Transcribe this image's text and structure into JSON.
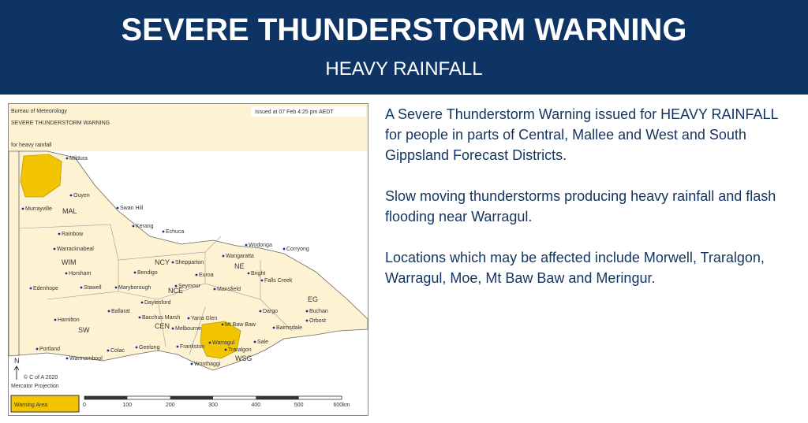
{
  "header": {
    "title": "SEVERE THUNDERSTORM WARNING",
    "subtitle": "HEAVY RAINFALL"
  },
  "map": {
    "agency": "Bureau of Meteorology",
    "heading": "SEVERE THUNDERSTORM WARNING",
    "subheading": "for heavy rainfall",
    "issued": "Issued at 07 Feb 4:25 pm AEDT",
    "places": [
      "Mildura",
      "Ouyen",
      "Murrayville",
      "Swan Hill",
      "Kerang",
      "Rainbow",
      "Warracknabeal",
      "Horsham",
      "Stawell",
      "Edenhope",
      "Echuca",
      "Shepparton",
      "Bendigo",
      "Euroa",
      "Seymour",
      "Maryborough",
      "Daylesford",
      "Ballarat",
      "Bacchus Marsh",
      "Yarra Glen",
      "Melbourne",
      "Mt Baw Baw",
      "Hamilton",
      "Portland",
      "Colac",
      "Geelong",
      "Warrnambool",
      "Frankston",
      "Warragul",
      "Traralgon",
      "Sale",
      "Wonthaggi",
      "Wodonga",
      "Corryong",
      "Wangaratta",
      "Falls Creek",
      "Bright",
      "Mansfield",
      "Dargo",
      "Buchan",
      "Orbost",
      "Bairnsdale"
    ],
    "districts": [
      "MAL",
      "WIM",
      "NCY",
      "NE",
      "NCE",
      "CEN",
      "SW",
      "WSG",
      "EG"
    ],
    "north": "N",
    "copyright": "© C of A 2020",
    "projection": "Mercator Projection",
    "legend": "Warning Area",
    "scale": [
      "0",
      "100",
      "200",
      "300",
      "400",
      "500",
      "600km"
    ]
  },
  "text": {
    "paragraphs": [
      "A Severe Thunderstorm Warning issued for HEAVY RAINFALL for people in parts of Central, Mallee and West and South Gippsland Forecast Districts.",
      "Slow moving thunderstorms producing heavy rainfall and flash flooding near Warragul.",
      "Locations which may be affected include Morwell, Traralgon, Warragul, Moe, Mt Baw Baw and Meringur."
    ]
  }
}
